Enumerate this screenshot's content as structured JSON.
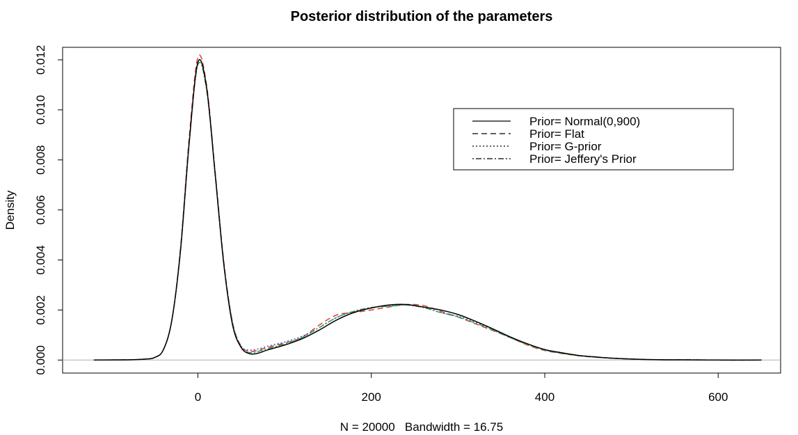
{
  "chart_data": {
    "type": "line",
    "title": "Posterior distribution of the parameters",
    "xlabel": "N = 20000   Bandwidth = 16.75",
    "ylabel": "Density",
    "xlim": [
      -156,
      672
    ],
    "ylim": [
      -0.00052,
      0.0125
    ],
    "x_ticks": [
      "0",
      "200",
      "400",
      "600"
    ],
    "x_tick_values": [
      0,
      200,
      400,
      600
    ],
    "y_ticks": [
      "0.000",
      "0.002",
      "0.004",
      "0.006",
      "0.008",
      "0.010",
      "0.012"
    ],
    "y_tick_values": [
      0,
      0.002,
      0.004,
      0.006,
      0.008,
      0.01,
      0.012
    ],
    "baseline": 0,
    "legend_position": "top-right",
    "series": [
      {
        "name": "Prior= Normal(0,900)",
        "color": "#000000",
        "dash": "solid",
        "x": [
          -120,
          -80,
          -60,
          -50,
          -40,
          -30,
          -20,
          -10,
          0,
          10,
          20,
          30,
          40,
          50,
          60,
          70,
          80,
          100,
          120,
          140,
          160,
          180,
          200,
          220,
          240,
          260,
          280,
          300,
          320,
          340,
          360,
          380,
          400,
          420,
          440,
          460,
          480,
          500,
          520,
          540,
          560,
          600,
          650
        ],
        "y": [
          0,
          1e-05,
          4e-05,
          0.0001,
          0.0004,
          0.0016,
          0.0044,
          0.0087,
          0.0119,
          0.0109,
          0.0074,
          0.0038,
          0.0014,
          0.0005,
          0.00025,
          0.00028,
          0.0004,
          0.0006,
          0.00085,
          0.0012,
          0.0016,
          0.0019,
          0.00208,
          0.0022,
          0.00222,
          0.00212,
          0.002,
          0.00182,
          0.00155,
          0.00125,
          0.00093,
          0.00065,
          0.00042,
          0.00029,
          0.00018,
          0.00012,
          7e-05,
          4e-05,
          2e-05,
          1e-05,
          1e-05,
          0,
          0
        ]
      },
      {
        "name": "Prior= Flat",
        "color": "#df3a3a",
        "dash": "dashed",
        "x": [
          -120,
          -80,
          -60,
          -50,
          -40,
          -30,
          -20,
          -10,
          0,
          10,
          20,
          30,
          40,
          50,
          60,
          70,
          80,
          100,
          120,
          140,
          160,
          180,
          200,
          220,
          240,
          260,
          280,
          300,
          320,
          340,
          360,
          380,
          400,
          420,
          440,
          460,
          480,
          500,
          520,
          540,
          560,
          600,
          650
        ],
        "y": [
          0,
          1e-05,
          4e-05,
          0.0001,
          0.0004,
          0.0016,
          0.0045,
          0.0089,
          0.0121,
          0.011,
          0.0075,
          0.0039,
          0.0015,
          0.00055,
          0.00035,
          0.0004,
          0.0005,
          0.00068,
          0.0009,
          0.0014,
          0.0018,
          0.0019,
          0.002,
          0.00212,
          0.00222,
          0.00218,
          0.00195,
          0.00172,
          0.00145,
          0.00118,
          0.0009,
          0.0006,
          0.00038,
          0.00026,
          0.00017,
          0.00011,
          7e-05,
          4e-05,
          2e-05,
          1e-05,
          1e-05,
          0,
          0
        ]
      },
      {
        "name": "Prior= G-prior",
        "color": "#3c4fd0",
        "dash": "dotted",
        "x": [
          -120,
          -80,
          -60,
          -50,
          -40,
          -30,
          -20,
          -10,
          0,
          10,
          20,
          30,
          40,
          50,
          60,
          70,
          80,
          100,
          120,
          140,
          160,
          180,
          200,
          220,
          240,
          260,
          280,
          300,
          320,
          340,
          360,
          380,
          400,
          420,
          440,
          460,
          480,
          500,
          520,
          540,
          560,
          600,
          650
        ],
        "y": [
          0,
          1e-05,
          4e-05,
          0.0001,
          0.0004,
          0.0016,
          0.0044,
          0.0087,
          0.0119,
          0.0109,
          0.0074,
          0.0038,
          0.0015,
          0.00055,
          0.0004,
          0.00045,
          0.00055,
          0.00072,
          0.00095,
          0.0013,
          0.0017,
          0.00195,
          0.0021,
          0.00215,
          0.0022,
          0.0021,
          0.0019,
          0.00175,
          0.0015,
          0.00122,
          0.0009,
          0.00063,
          0.0004,
          0.00028,
          0.00018,
          0.00012,
          7e-05,
          4e-05,
          2e-05,
          1e-05,
          1e-05,
          0,
          0
        ]
      },
      {
        "name": "Prior= Jeffery's Prior",
        "color": "#2f9e4a",
        "dash": "dotdash",
        "x": [
          -120,
          -80,
          -60,
          -50,
          -40,
          -30,
          -20,
          -10,
          0,
          10,
          20,
          30,
          40,
          50,
          60,
          70,
          80,
          100,
          120,
          140,
          160,
          180,
          200,
          220,
          240,
          260,
          280,
          300,
          320,
          340,
          360,
          380,
          400,
          420,
          440,
          460,
          480,
          500,
          520,
          540,
          560,
          600,
          650
        ],
        "y": [
          0,
          1e-05,
          4e-05,
          0.0001,
          0.0004,
          0.0016,
          0.0044,
          0.0087,
          0.0118,
          0.0108,
          0.0074,
          0.0038,
          0.0015,
          0.0005,
          0.0003,
          0.00035,
          0.00045,
          0.00065,
          0.0009,
          0.0013,
          0.0017,
          0.00195,
          0.0021,
          0.00215,
          0.0022,
          0.0021,
          0.0019,
          0.00172,
          0.00148,
          0.0012,
          0.0009,
          0.00062,
          0.0004,
          0.00027,
          0.00017,
          0.00011,
          7e-05,
          4e-05,
          2e-05,
          1e-05,
          1e-05,
          0,
          0
        ]
      }
    ],
    "legend": [
      {
        "label": "Prior= Normal(0,900)",
        "dash": "solid"
      },
      {
        "label": "Prior= Flat",
        "dash": "dashed"
      },
      {
        "label": "Prior= G-prior",
        "dash": "dotted"
      },
      {
        "label": "Prior= Jeffery's Prior",
        "dash": "dotdash"
      }
    ]
  }
}
